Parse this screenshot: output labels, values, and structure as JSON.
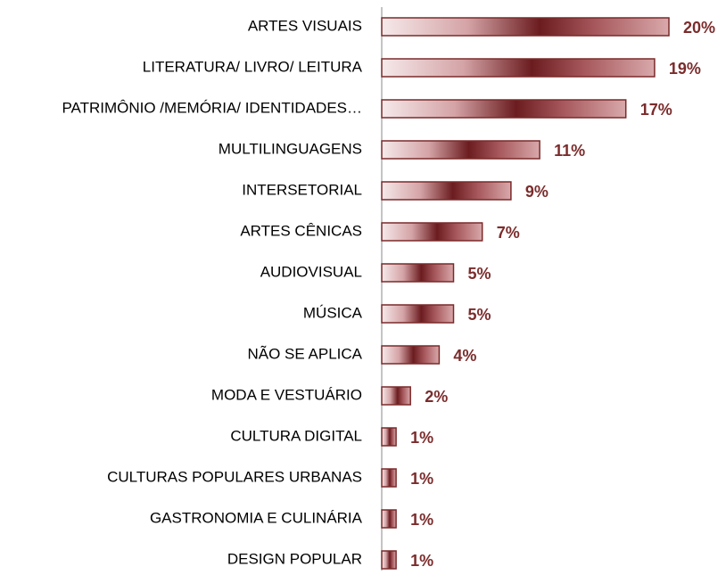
{
  "chart_data": {
    "type": "bar",
    "orientation": "horizontal",
    "categories": [
      "ARTES VISUAIS",
      "LITERATURA/ LIVRO/ LEITURA",
      "PATRIMÔNIO /MEMÓRIA/ IDENTIDADES…",
      "MULTILINGUAGENS",
      "INTERSETORIAL",
      "ARTES CÊNICAS",
      "AUDIOVISUAL",
      "MÚSICA",
      "NÃO SE APLICA",
      "MODA E VESTUÁRIO",
      "CULTURA DIGITAL",
      "CULTURAS POPULARES URBANAS",
      "GASTRONOMIA E CULINÁRIA",
      "DESIGN POPULAR"
    ],
    "values": [
      20,
      19,
      17,
      11,
      9,
      7,
      5,
      5,
      4,
      2,
      1,
      1,
      1,
      1
    ],
    "value_labels": [
      "20%",
      "19%",
      "17%",
      "11%",
      "9%",
      "7%",
      "5%",
      "5%",
      "4%",
      "2%",
      "1%",
      "1%",
      "1%",
      "1%"
    ],
    "color": "#7a2a2a"
  }
}
